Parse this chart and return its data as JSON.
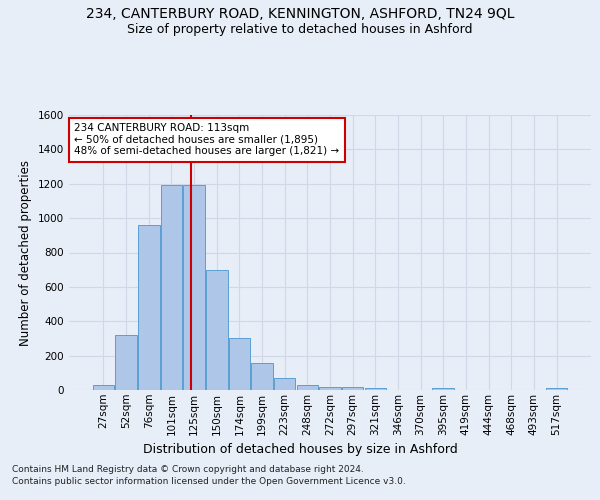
{
  "title": "234, CANTERBURY ROAD, KENNINGTON, ASHFORD, TN24 9QL",
  "subtitle": "Size of property relative to detached houses in Ashford",
  "xlabel": "Distribution of detached houses by size in Ashford",
  "ylabel": "Number of detached properties",
  "categories": [
    "27sqm",
    "52sqm",
    "76sqm",
    "101sqm",
    "125sqm",
    "150sqm",
    "174sqm",
    "199sqm",
    "223sqm",
    "248sqm",
    "272sqm",
    "297sqm",
    "321sqm",
    "346sqm",
    "370sqm",
    "395sqm",
    "419sqm",
    "444sqm",
    "468sqm",
    "493sqm",
    "517sqm"
  ],
  "values": [
    30,
    320,
    960,
    1195,
    1195,
    700,
    305,
    155,
    70,
    28,
    18,
    15,
    12,
    0,
    0,
    12,
    0,
    0,
    0,
    0,
    12
  ],
  "bar_color": "#aec6e8",
  "bar_edge_color": "#5a9fd4",
  "grid_color": "#d0d8e8",
  "background_color": "#e8eef8",
  "vline_x": 3.88,
  "vline_color": "#cc0000",
  "annotation_text": "234 CANTERBURY ROAD: 113sqm\n← 50% of detached houses are smaller (1,895)\n48% of semi-detached houses are larger (1,821) →",
  "annotation_box_color": "#ffffff",
  "annotation_box_edgecolor": "#cc0000",
  "ylim": [
    0,
    1600
  ],
  "yticks": [
    0,
    200,
    400,
    600,
    800,
    1000,
    1200,
    1400,
    1600
  ],
  "footer1": "Contains HM Land Registry data © Crown copyright and database right 2024.",
  "footer2": "Contains public sector information licensed under the Open Government Licence v3.0.",
  "title_fontsize": 10,
  "subtitle_fontsize": 9,
  "tick_fontsize": 7.5,
  "ylabel_fontsize": 8.5,
  "xlabel_fontsize": 9,
  "footer_fontsize": 6.5
}
